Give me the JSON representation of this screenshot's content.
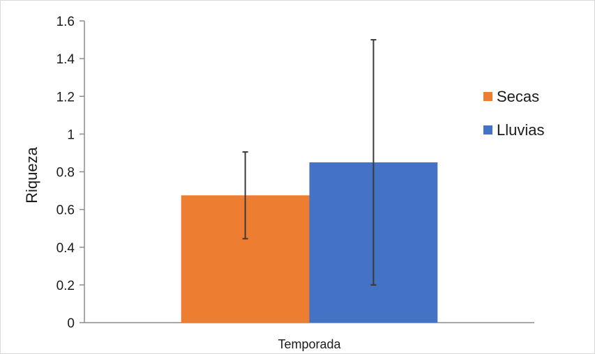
{
  "chart_data": {
    "type": "bar",
    "categories": [
      "Temporada"
    ],
    "series": [
      {
        "name": "Secas",
        "values": [
          0.675
        ],
        "error_low": [
          0.445
        ],
        "error_high": [
          0.905
        ],
        "color": "#ED7D31"
      },
      {
        "name": "Lluvias",
        "values": [
          0.85
        ],
        "error_low": [
          0.2
        ],
        "error_high": [
          1.5
        ],
        "color": "#4472C4"
      }
    ],
    "title": "",
    "xlabel": "",
    "ylabel": "Riqueza",
    "ylim": [
      0,
      1.6
    ],
    "yticks": [
      "0",
      "0.2",
      "0.4",
      "0.6",
      "0.8",
      "1",
      "1.2",
      "1.4",
      "1.6"
    ],
    "grid": false,
    "legend_position": "right"
  }
}
